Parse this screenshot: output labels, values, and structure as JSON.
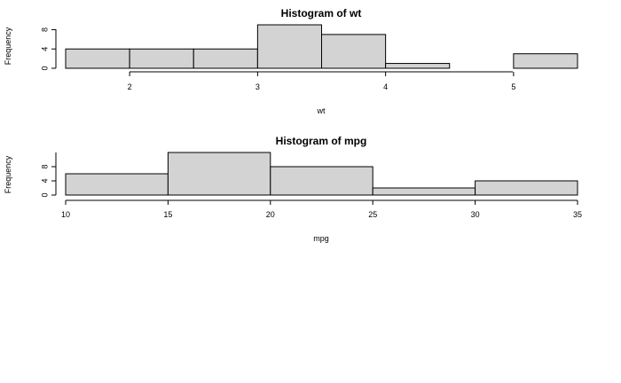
{
  "chart_data": [
    {
      "type": "bar",
      "title": "Histogram of wt",
      "xlabel": "wt",
      "ylabel": "Frequency",
      "bins": [
        {
          "start": 1.5,
          "end": 2.0,
          "count": 4
        },
        {
          "start": 2.0,
          "end": 2.5,
          "count": 4
        },
        {
          "start": 2.5,
          "end": 3.0,
          "count": 4
        },
        {
          "start": 3.0,
          "end": 3.5,
          "count": 9
        },
        {
          "start": 3.5,
          "end": 4.0,
          "count": 7
        },
        {
          "start": 4.0,
          "end": 4.5,
          "count": 1
        },
        {
          "start": 4.5,
          "end": 5.0,
          "count": 0
        },
        {
          "start": 5.0,
          "end": 5.5,
          "count": 3
        }
      ],
      "xlim": [
        1.5,
        5.5
      ],
      "ylim": [
        0,
        9
      ],
      "xticks": [
        2,
        3,
        4,
        5
      ],
      "yticks": [
        0,
        4,
        8
      ],
      "grid": false
    },
    {
      "type": "bar",
      "title": "Histogram of mpg",
      "xlabel": "mpg",
      "ylabel": "Frequency",
      "bins": [
        {
          "start": 10,
          "end": 15,
          "count": 6
        },
        {
          "start": 15,
          "end": 20,
          "count": 12
        },
        {
          "start": 20,
          "end": 25,
          "count": 8
        },
        {
          "start": 25,
          "end": 30,
          "count": 2
        },
        {
          "start": 30,
          "end": 35,
          "count": 4
        }
      ],
      "xlim": [
        10,
        35
      ],
      "ylim": [
        0,
        12
      ],
      "xticks": [
        10,
        15,
        20,
        25,
        30,
        35
      ],
      "yticks": [
        0,
        4,
        8
      ],
      "grid": false
    }
  ]
}
